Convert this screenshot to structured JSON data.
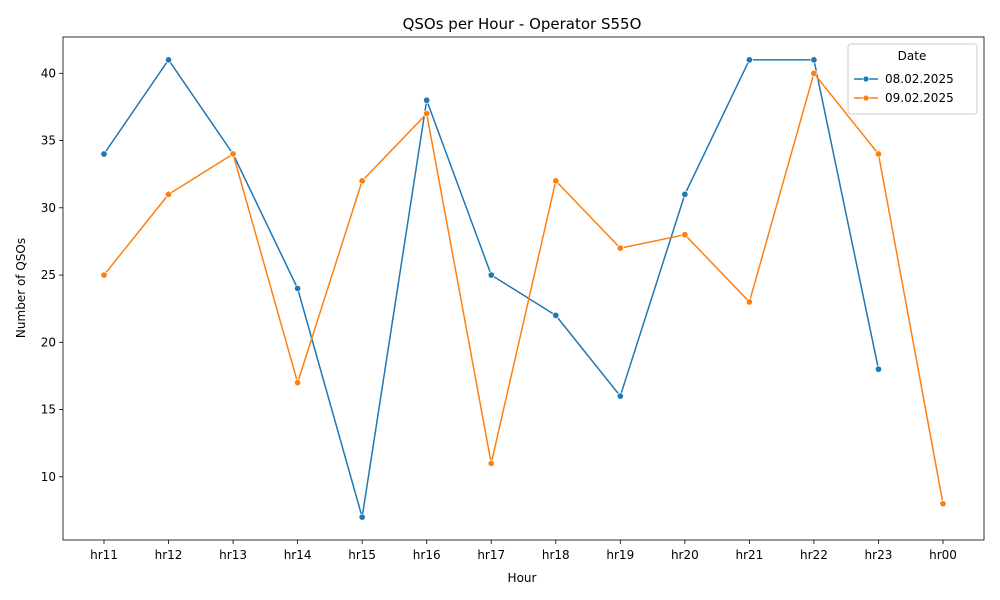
{
  "chart_data": {
    "type": "line",
    "title": "QSOs per Hour - Operator S55O",
    "xlabel": "Hour",
    "ylabel": "Number of QSOs",
    "categories": [
      "hr11",
      "hr12",
      "hr13",
      "hr14",
      "hr15",
      "hr16",
      "hr17",
      "hr18",
      "hr19",
      "hr20",
      "hr21",
      "hr22",
      "hr23",
      "hr00"
    ],
    "yticks": [
      10,
      15,
      20,
      25,
      30,
      35,
      40
    ],
    "ylim": [
      5.3,
      42.7
    ],
    "legend": {
      "title": "Date",
      "position": "top-right"
    },
    "series": [
      {
        "name": "08.02.2025",
        "color": "#1f77b4",
        "values": [
          34,
          41,
          34,
          24,
          7,
          38,
          25,
          22,
          16,
          31,
          41,
          41,
          18,
          null
        ]
      },
      {
        "name": "09.02.2025",
        "color": "#ff7f0e",
        "values": [
          25,
          31,
          34,
          17,
          32,
          37,
          11,
          32,
          27,
          28,
          23,
          40,
          34,
          8
        ]
      }
    ]
  }
}
